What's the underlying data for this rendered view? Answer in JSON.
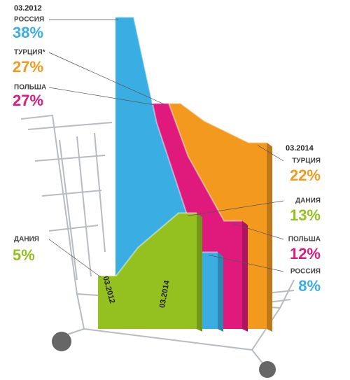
{
  "chart_data": {
    "type": "line",
    "x": [
      "03.2012",
      "03.2014"
    ],
    "series": [
      {
        "labels": [
          "РОССИЯ",
          "РОССИЯ"
        ],
        "color": "#3aaee3",
        "values": [
          38,
          8
        ],
        "value_labels": [
          "38%",
          "8%"
        ]
      },
      {
        "labels": [
          "ТУРЦИЯ*",
          "ТУРЦИЯ"
        ],
        "color": "#f39a1e",
        "values": [
          27,
          22
        ],
        "value_labels": [
          "27%",
          "22%"
        ]
      },
      {
        "labels": [
          "ПОЛЬША",
          "ПОЛЬША"
        ],
        "color": "#e0197d",
        "values": [
          27,
          12
        ],
        "value_labels": [
          "27%",
          "12%"
        ]
      },
      {
        "labels": [
          "ДАНИЯ",
          "ДАНИЯ"
        ],
        "color": "#94c11f",
        "values": [
          5,
          13
        ],
        "value_labels": [
          "5%",
          "13%"
        ]
      }
    ]
  }
}
